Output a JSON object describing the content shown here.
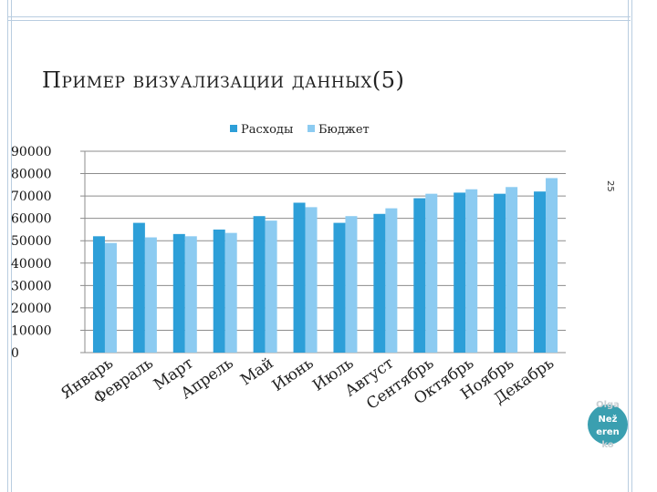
{
  "slide": {
    "title_first": "П",
    "title_rest": "ример визуализации данных",
    "title_suffix": "(5)",
    "slide_number": "25",
    "author": [
      "Olga",
      "Než",
      "eren",
      "ko"
    ]
  },
  "chart_data": {
    "type": "bar",
    "title": "",
    "xlabel": "",
    "ylabel": "",
    "ylim": [
      0,
      90000
    ],
    "yticks": [
      "0",
      "10000",
      "20000",
      "30000",
      "40000",
      "50000",
      "60000",
      "70000",
      "80000",
      "90000"
    ],
    "grid": true,
    "legend_position": "top",
    "categories": [
      "Январь",
      "Февраль",
      "Март",
      "Апрель",
      "Май",
      "Июнь",
      "Июль",
      "Август",
      "Сентябрь",
      "Октябрь",
      "Ноябрь",
      "Декабрь"
    ],
    "series": [
      {
        "name": "Расходы",
        "color": "#2d9fd8",
        "values": [
          52000,
          58000,
          53000,
          55000,
          61000,
          67000,
          58000,
          62000,
          69000,
          71500,
          71000,
          72000
        ]
      },
      {
        "name": "Бюджет",
        "color": "#8ccbf1",
        "values": [
          49000,
          51500,
          52000,
          53500,
          59000,
          65000,
          61000,
          64500,
          71000,
          73000,
          74000,
          78000
        ]
      }
    ]
  }
}
